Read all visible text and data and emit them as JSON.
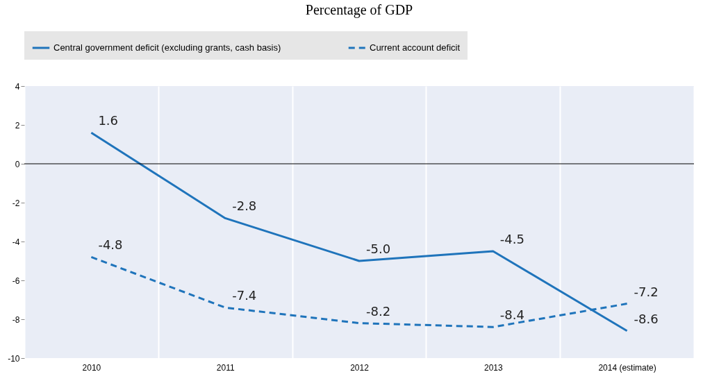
{
  "chart_data": {
    "type": "line",
    "title": "Percentage of GDP",
    "categories": [
      "2010",
      "2011",
      "2012",
      "2013",
      "2014 (estimate)"
    ],
    "series": [
      {
        "name": "Central government deficit (excluding grants, cash basis)",
        "color": "#1f74bb",
        "line_style": "solid",
        "values": [
          1.6,
          -2.8,
          -5.0,
          -4.5,
          -8.6
        ],
        "value_labels": [
          "1.6",
          "-2.8",
          "-5.0",
          "-4.5",
          "-8.6"
        ]
      },
      {
        "name": "Current account deficit",
        "color": "#1f74bb",
        "line_style": "dashed",
        "values": [
          -4.8,
          -7.4,
          -8.2,
          -8.4,
          -7.2
        ],
        "value_labels": [
          "-4.8",
          "-7.4",
          "-8.2",
          "-8.4",
          "-7.2"
        ]
      }
    ],
    "ylim": [
      -10,
      4
    ],
    "yticks": [
      -10,
      -8,
      -6,
      -4,
      -2,
      0,
      2,
      4
    ],
    "ref_lines": [
      {
        "axis": "y",
        "value": 0
      }
    ],
    "grid": "x",
    "legend": "top",
    "marker": "none"
  }
}
